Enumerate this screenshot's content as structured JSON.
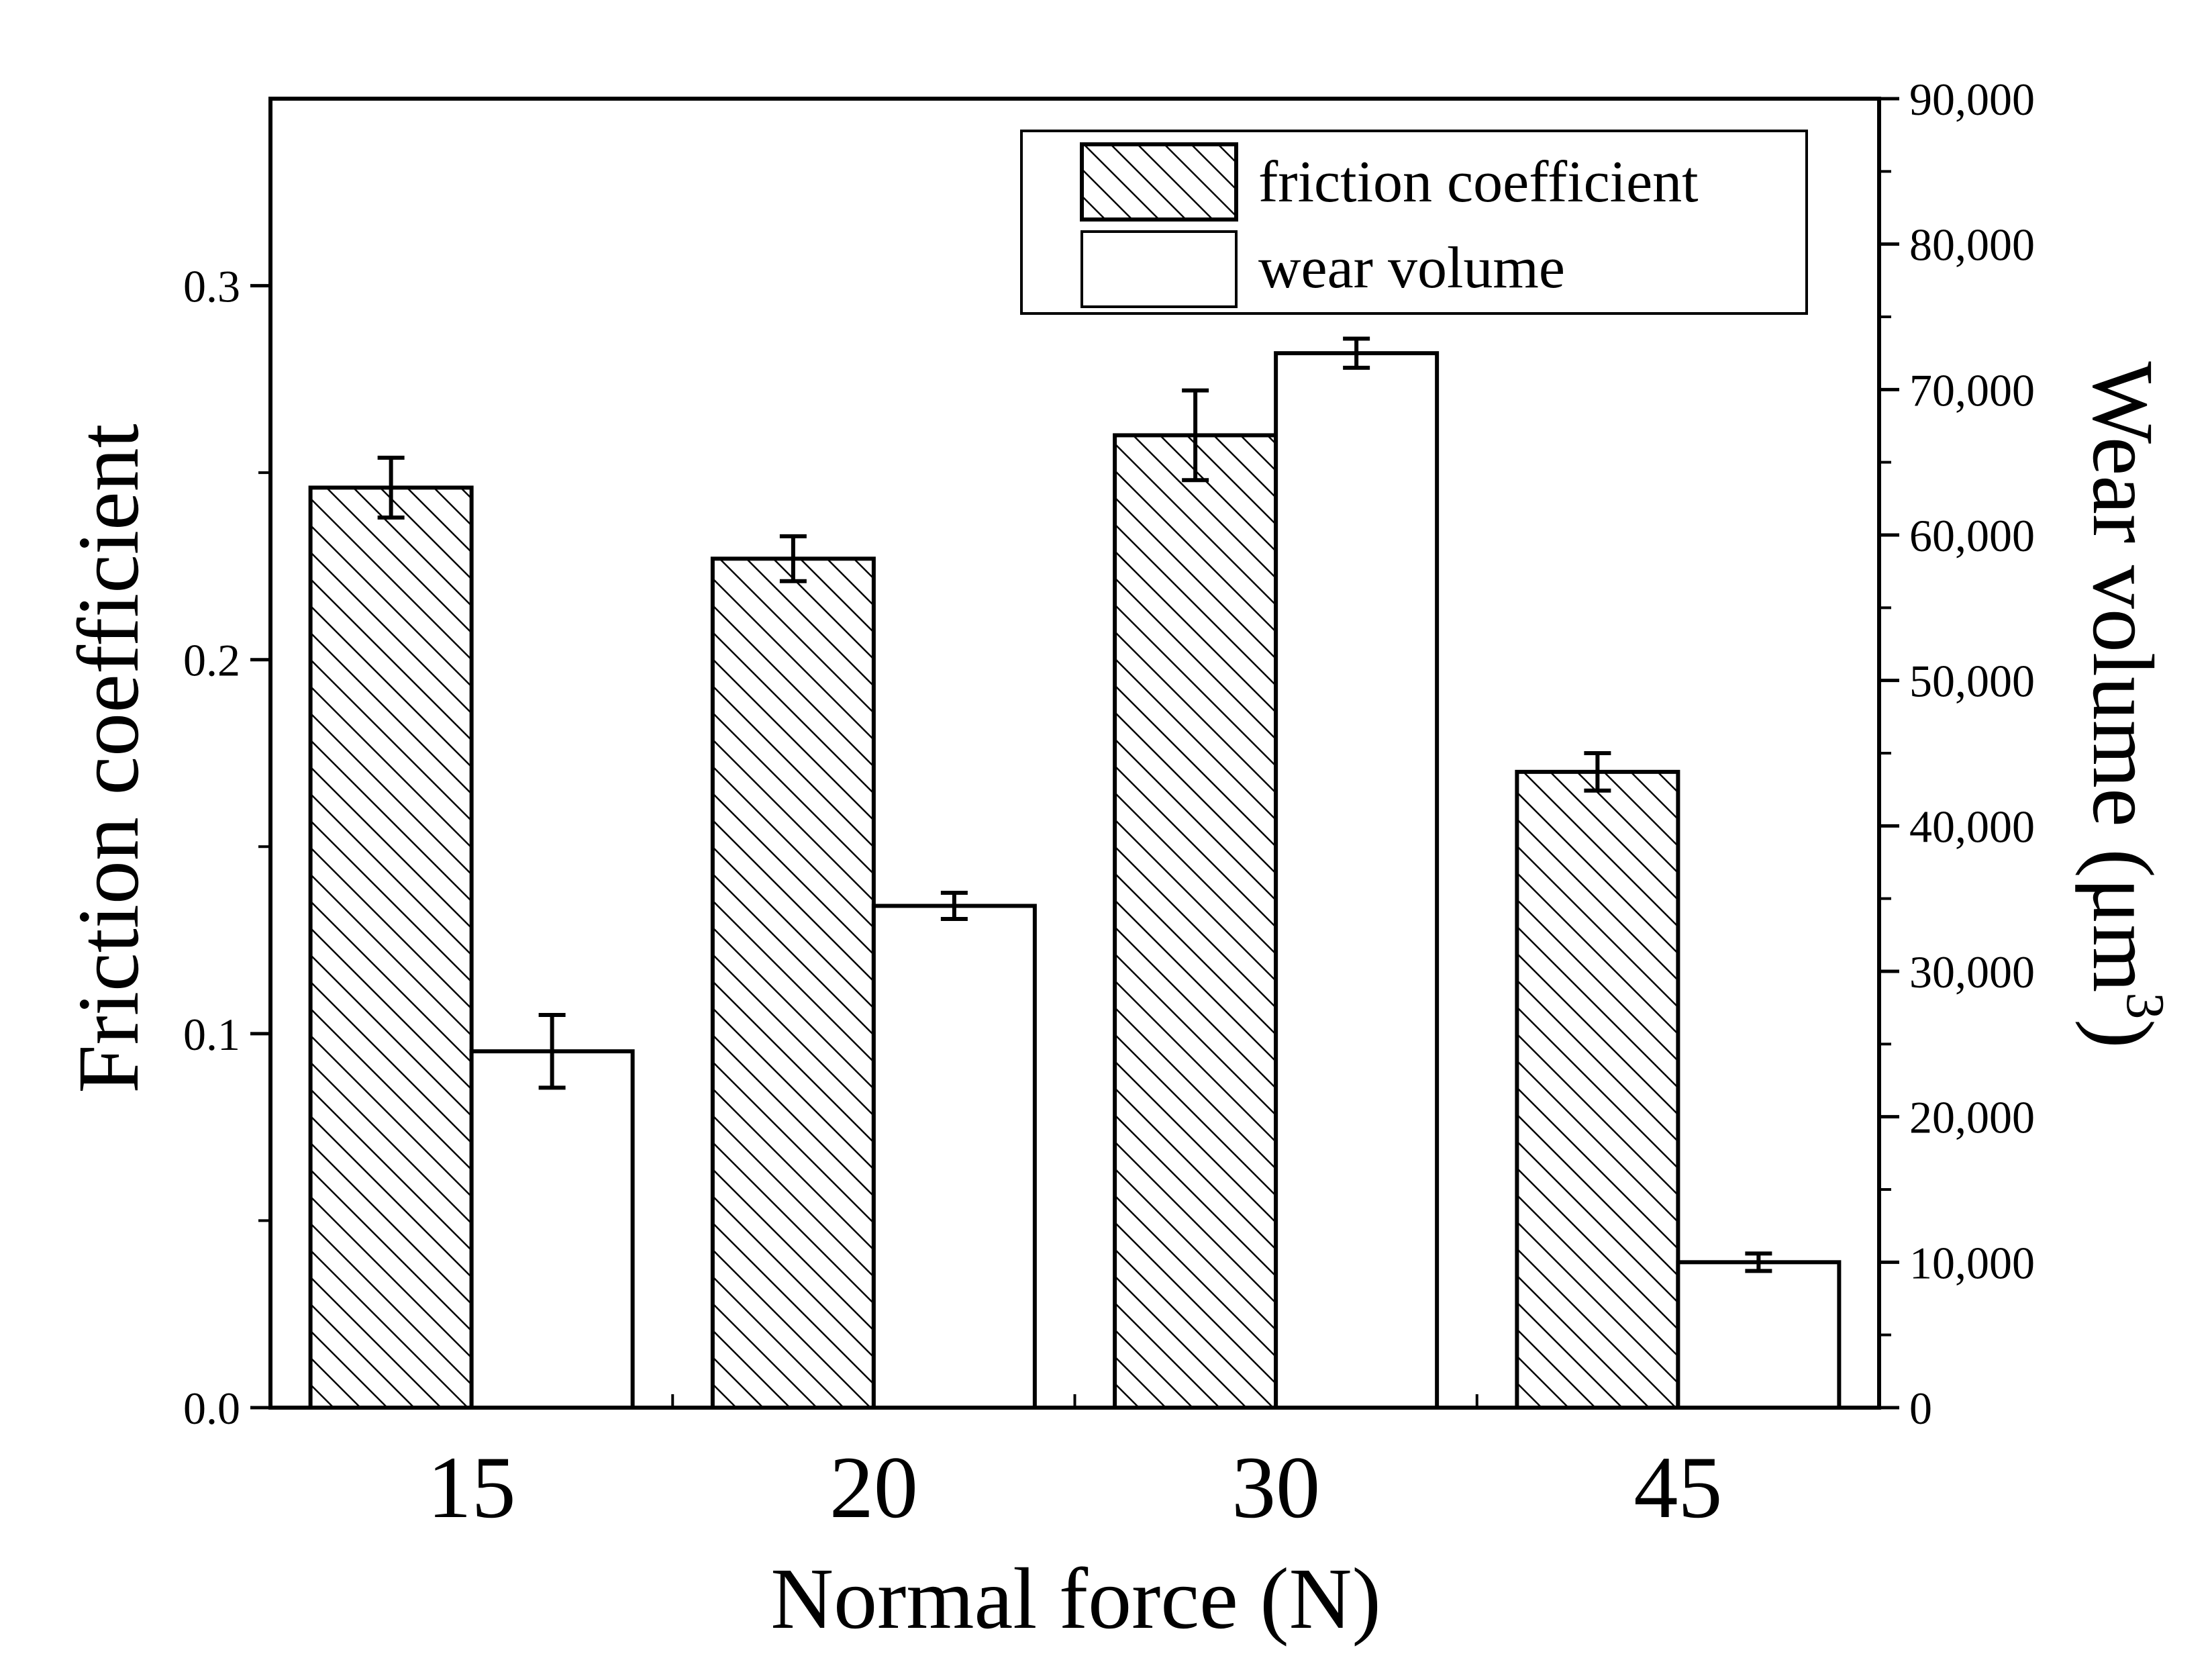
{
  "chart_data": {
    "type": "bar",
    "categories": [
      "15",
      "20",
      "30",
      "45"
    ],
    "xlabel": "Normal force (N)",
    "ylabel_left": "Friction coefficient",
    "ylabel_right": "Wear volume (μm",
    "ylabel_right_sup": "3",
    "ylabel_right_close": ")",
    "ylim_left": [
      0,
      0.35
    ],
    "yticks_left": [
      "0.0",
      "0.1",
      "0.2",
      "0.3"
    ],
    "ylim_right": [
      0,
      90000
    ],
    "yticks_right": [
      "0",
      "10,000",
      "20,000",
      "30,000",
      "40,000",
      "50,000",
      "60,000",
      "70,000",
      "80,000",
      "90,000"
    ],
    "legend_position": "top-right",
    "series": [
      {
        "name": "friction coefficient",
        "axis": "left",
        "pattern": "hatched",
        "values": [
          0.246,
          0.227,
          0.26,
          0.17
        ],
        "errors": [
          0.008,
          0.006,
          0.012,
          0.005
        ]
      },
      {
        "name": "wear volume",
        "axis": "right",
        "pattern": "plain",
        "values": [
          24500,
          34500,
          72500,
          10000
        ],
        "errors": [
          2500,
          900,
          1000,
          600
        ]
      }
    ]
  }
}
